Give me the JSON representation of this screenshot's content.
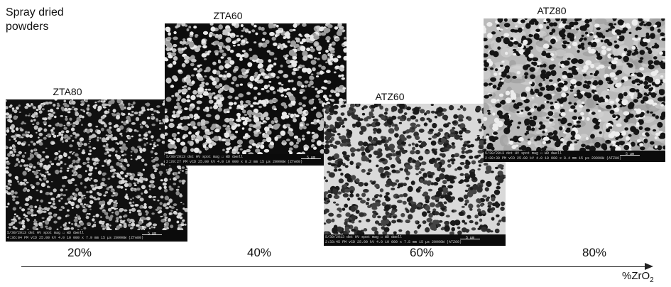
{
  "title": "Spray dried\npowders",
  "panels": [
    {
      "label": "ZTA80",
      "info_row1": "5/30/2013   det   HV   spot   mag ☐   WD   dwell",
      "info_row2": "4:36:04 PM  vCD  25.00 kV  4.0  10 000 x  7.9 mm  15 µs   20990W (ZTA80)",
      "scale": "5 µm"
    },
    {
      "label": "ZTA60",
      "info_row1": "5/30/2013   det   HV   spot   mag ☐   WD   dwell",
      "info_row2": "2:20:27 PM  vCD  25.00 kV  4.0  10 000 x  8.2 mm  15 µs   20990W (ZTA60)",
      "scale": "5 µm"
    },
    {
      "label": "ATZ60",
      "info_row1": "5/30/2013   det   HV   spot   mag ☐   WD   dwell",
      "info_row2": "2:33:45 PM  vCD  25.00 kV  4.0  10 000 x  7.5 mm  15 µs   20990W (ATZ60)",
      "scale": "5 µm"
    },
    {
      "label": "ATZ80",
      "info_row1": "5/30/2013   det   HV   spot   mag ☐   WD   dwell",
      "info_row2": "2:30:30 PM  vCD  25.00 kV  4.0  10 000 x  8.4 mm  15 µs   20990W (ATZ80)",
      "scale": "5 µm"
    }
  ],
  "percentages": [
    "20%",
    "40%",
    "60%",
    "80%"
  ],
  "axis": {
    "label_main": "%ZrO",
    "label_sub": "2"
  },
  "colors": {
    "text": "#111111",
    "axis": "#222222",
    "sem_dark": "#111111",
    "sem_light": "#e6e6e6"
  }
}
